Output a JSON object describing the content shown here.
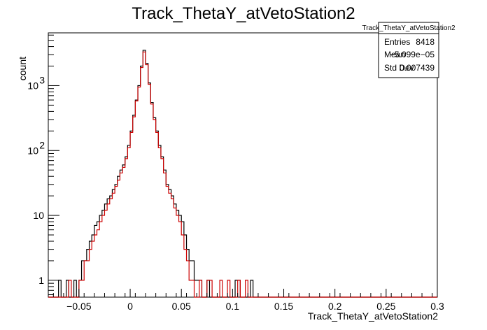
{
  "chart_data": {
    "type": "histogram",
    "title": "Track_ThetaY_atVetoStation2",
    "xlabel": "Track_ThetaY_atVetoStation2",
    "ylabel": "count",
    "xlim": [
      -0.08,
      0.3
    ],
    "ylim": [
      0.55,
      6500
    ],
    "yscale": "log",
    "bin_width": 0.0025,
    "x_ticks": [
      {
        "value": -0.05,
        "label": "−0.05"
      },
      {
        "value": 0,
        "label": "0"
      },
      {
        "value": 0.05,
        "label": "0.05"
      },
      {
        "value": 0.1,
        "label": "0.1"
      },
      {
        "value": 0.15,
        "label": "0.15"
      },
      {
        "value": 0.2,
        "label": "0.2"
      },
      {
        "value": 0.25,
        "label": "0.25"
      },
      {
        "value": 0.3,
        "label": "0.3"
      }
    ],
    "y_ticks": [
      {
        "value": 1,
        "label": "1"
      },
      {
        "value": 10,
        "label": "10"
      },
      {
        "value": 100,
        "label": "10",
        "exp": "2"
      },
      {
        "value": 1000,
        "label": "10",
        "exp": "3"
      }
    ],
    "stats": {
      "name": "Track_ThetaY_atVetoStation2",
      "rows": [
        {
          "label": "Entries",
          "value": "8418"
        },
        {
          "label": "Mean",
          "value": "−5.099e−05"
        },
        {
          "label": "Std Dev",
          "value": "0.007439"
        }
      ]
    },
    "series": [
      {
        "color": "#000000",
        "x_start": -0.08,
        "counts": [
          0,
          0,
          0,
          0,
          1,
          0,
          0,
          1,
          0,
          0,
          1,
          0,
          1,
          2,
          2,
          3,
          4,
          5,
          7,
          8,
          10,
          12,
          15,
          18,
          20,
          25,
          30,
          40,
          50,
          60,
          80,
          120,
          200,
          350,
          600,
          1000,
          2000,
          3500,
          2200,
          1100,
          550,
          320,
          200,
          120,
          80,
          50,
          30,
          25,
          20,
          15,
          12,
          10,
          8,
          5,
          3,
          2,
          2,
          1,
          1,
          1,
          0,
          0,
          1,
          0,
          0,
          0,
          0,
          0,
          0,
          0,
          0,
          0,
          0,
          1,
          1,
          0,
          0,
          0,
          0,
          1,
          0,
          0,
          0,
          0,
          0,
          0,
          0,
          0,
          0,
          0,
          0,
          0,
          0,
          0,
          0,
          0,
          0,
          0,
          0,
          0,
          0,
          0,
          0,
          0,
          0,
          0,
          0,
          0,
          0,
          0,
          0,
          0,
          0,
          0,
          0,
          0,
          0,
          0,
          0,
          0,
          0,
          0,
          0,
          0,
          0,
          0,
          0,
          0,
          0,
          0,
          0,
          0,
          0,
          0,
          0,
          0,
          0,
          0,
          0,
          0,
          0,
          0,
          0,
          0,
          0,
          0,
          0,
          0,
          0,
          0,
          0,
          0,
          0,
          0
        ]
      },
      {
        "color": "#cc0000",
        "x_start": -0.08,
        "counts": [
          0,
          0,
          0,
          0,
          0,
          0,
          0,
          0,
          1,
          0,
          0,
          0,
          1,
          1,
          2,
          2,
          3,
          4,
          5,
          6,
          8,
          10,
          12,
          15,
          18,
          22,
          28,
          35,
          45,
          55,
          75,
          110,
          190,
          330,
          580,
          950,
          1900,
          3300,
          2100,
          1050,
          520,
          300,
          190,
          110,
          75,
          45,
          28,
          22,
          18,
          13,
          10,
          8,
          5,
          3,
          2,
          1,
          1,
          0,
          0,
          1,
          0,
          0,
          1,
          1,
          0,
          0,
          0,
          1,
          0,
          0,
          1,
          0,
          0,
          0,
          1,
          0,
          0,
          1,
          0,
          0,
          0,
          0,
          0,
          0,
          0,
          0,
          0,
          0,
          0,
          0,
          0,
          0,
          0,
          0,
          0,
          0,
          0,
          0,
          0,
          0,
          0,
          0,
          0,
          0,
          0,
          0,
          0,
          0,
          0,
          0,
          0,
          0,
          0,
          0,
          0,
          0,
          0,
          0,
          0,
          0,
          0,
          0,
          0,
          0,
          0,
          0,
          0,
          0,
          0,
          0,
          0,
          0,
          0,
          0,
          0,
          0,
          0,
          0,
          0,
          0,
          0,
          0,
          0,
          0,
          0,
          0,
          0,
          0,
          0,
          0,
          0,
          0
        ]
      }
    ]
  }
}
